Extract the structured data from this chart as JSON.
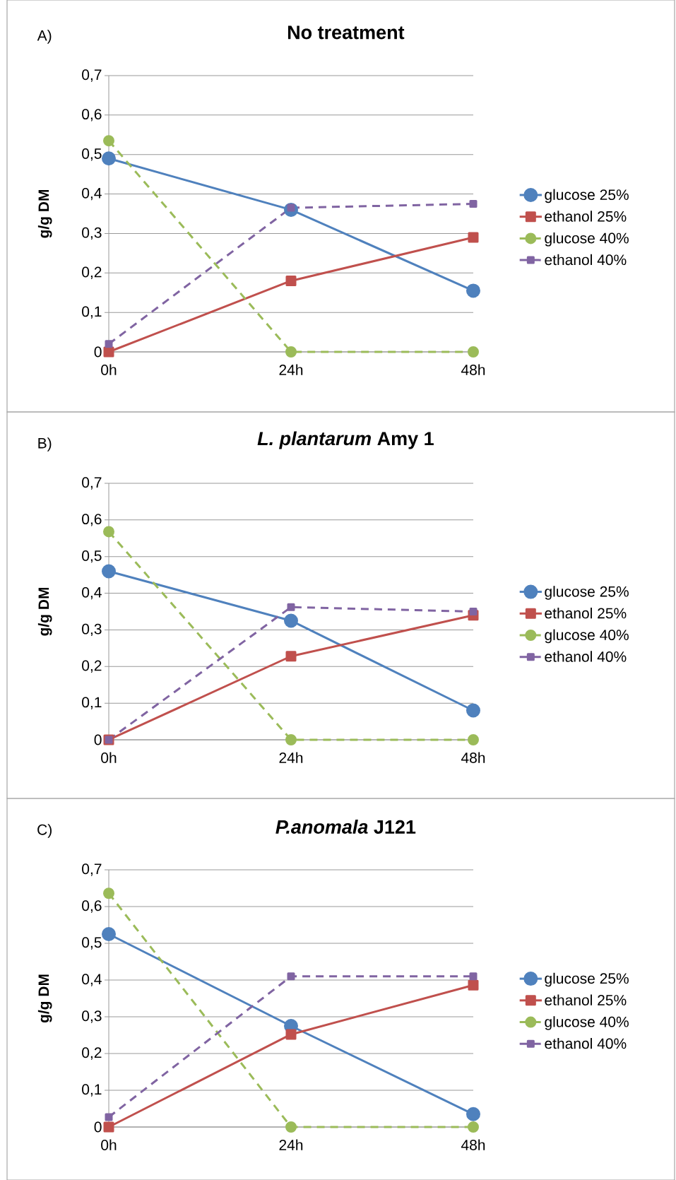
{
  "chart_data": [
    {
      "type": "line",
      "title": "No treatment",
      "annotations": [
        "A)"
      ],
      "ylabel": "g/g DM",
      "categories": [
        "0h",
        "24h",
        "48h"
      ],
      "series": [
        {
          "name": "glucose 25%",
          "color": "#4f81bd",
          "values": [
            0.49,
            0.36,
            0.155
          ],
          "line_style": "solid",
          "marker": "circle"
        },
        {
          "name": "ethanol 25%",
          "color": "#c0504d",
          "values": [
            0,
            0.18,
            0.29
          ],
          "line_style": "solid",
          "marker": "square"
        },
        {
          "name": "glucose 40%",
          "color": "#9bbb59",
          "values": [
            0.535,
            0,
            0
          ],
          "line_style": "dashed",
          "marker": "circle"
        },
        {
          "name": "ethanol 40%",
          "color": "#8064a2",
          "values": [
            0.02,
            0.365,
            0.375
          ],
          "line_style": "dashed",
          "marker": "square"
        }
      ],
      "ylim": [
        0,
        0.7
      ],
      "yticks": [
        0,
        {
          "value": 0.1,
          "label": "0,1"
        },
        {
          "value": 0.2,
          "label": "0,2"
        },
        {
          "value": 0.3,
          "label": "0,3"
        },
        {
          "value": 0.4,
          "label": "0,4"
        },
        {
          "value": 0.5,
          "label": "0,5"
        },
        {
          "value": 0.6,
          "label": "0,6"
        },
        {
          "value": 0.7,
          "label": "0,7"
        }
      ],
      "grid": "y",
      "legend": "right"
    },
    {
      "type": "line",
      "title": "*L. plantarum* Amy 1",
      "annotations": [
        "B)"
      ],
      "ylabel": "g/g DM",
      "categories": [
        "0h",
        "24h",
        "48h"
      ],
      "series": [
        {
          "name": "glucose 25%",
          "color": "#4f81bd",
          "values": [
            0.46,
            0.325,
            0.08
          ],
          "line_style": "solid",
          "marker": "circle"
        },
        {
          "name": "ethanol 25%",
          "color": "#c0504d",
          "values": [
            0,
            0.228,
            0.34
          ],
          "line_style": "solid",
          "marker": "square"
        },
        {
          "name": "glucose 40%",
          "color": "#9bbb59",
          "values": [
            0.568,
            0,
            0
          ],
          "line_style": "dashed",
          "marker": "circle"
        },
        {
          "name": "ethanol 40%",
          "color": "#8064a2",
          "values": [
            0,
            0.362,
            0.35
          ],
          "line_style": "dashed",
          "marker": "square"
        }
      ],
      "ylim": [
        0,
        0.7
      ],
      "yticks": [
        0,
        {
          "value": 0.1,
          "label": "0,1"
        },
        {
          "value": 0.2,
          "label": "0,2"
        },
        {
          "value": 0.3,
          "label": "0,3"
        },
        {
          "value": 0.4,
          "label": "0,4"
        },
        {
          "value": 0.5,
          "label": "0,5"
        },
        {
          "value": 0.6,
          "label": "0,6"
        },
        {
          "value": 0.7,
          "label": "0,7"
        }
      ],
      "grid": "y",
      "legend": "right"
    },
    {
      "type": "line",
      "title": "*P.anomala* J121",
      "annotations": [
        "C)"
      ],
      "ylabel": "g/g DM",
      "categories": [
        "0h",
        "24h",
        "48h"
      ],
      "series": [
        {
          "name": "glucose 25%",
          "color": "#4f81bd",
          "values": [
            0.525,
            0.275,
            0.035
          ],
          "line_style": "solid",
          "marker": "circle"
        },
        {
          "name": "ethanol 25%",
          "color": "#c0504d",
          "values": [
            0,
            0.252,
            0.386
          ],
          "line_style": "solid",
          "marker": "square"
        },
        {
          "name": "glucose 40%",
          "color": "#9bbb59",
          "values": [
            0.636,
            0,
            0
          ],
          "line_style": "dashed",
          "marker": "circle"
        },
        {
          "name": "ethanol 40%",
          "color": "#8064a2",
          "values": [
            0.027,
            0.41,
            0.41
          ],
          "line_style": "dashed",
          "marker": "square"
        }
      ],
      "ylim": [
        0,
        0.7
      ],
      "yticks": [
        0,
        {
          "value": 0.1,
          "label": "0,1"
        },
        {
          "value": 0.2,
          "label": "0,2"
        },
        {
          "value": 0.3,
          "label": "0,3"
        },
        {
          "value": 0.4,
          "label": "0,4"
        },
        {
          "value": 0.5,
          "label": "0,5"
        },
        {
          "value": 0.6,
          "label": "0,6"
        },
        {
          "value": 0.7,
          "label": "0,7"
        }
      ],
      "grid": "y",
      "legend": "right"
    }
  ]
}
